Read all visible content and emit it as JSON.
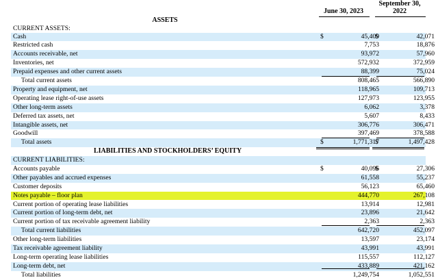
{
  "header": {
    "col1": "June 30, 2023",
    "col2_line1": "September 30,",
    "col2_line2": "2022"
  },
  "sections": {
    "assets_title": "ASSETS",
    "liabilities_title": "LIABILITIES AND STOCKHOLDERS’ EQUITY"
  },
  "rows": [
    {
      "label": "CURRENT ASSETS:",
      "indent": false,
      "shaded": false,
      "c1": "",
      "c2": "",
      "cur1": "",
      "cur2": ""
    },
    {
      "label": "Cash",
      "indent": false,
      "shaded": true,
      "c1": "45,409",
      "c2": "42,071",
      "cur1": "$",
      "cur2": "$"
    },
    {
      "label": "Restricted cash",
      "indent": false,
      "shaded": false,
      "c1": "7,753",
      "c2": "18,876",
      "cur1": "",
      "cur2": ""
    },
    {
      "label": "Accounts receivable, net",
      "indent": false,
      "shaded": true,
      "c1": "93,972",
      "c2": "57,960",
      "cur1": "",
      "cur2": ""
    },
    {
      "label": "Inventories, net",
      "indent": false,
      "shaded": false,
      "c1": "572,932",
      "c2": "372,959",
      "cur1": "",
      "cur2": ""
    },
    {
      "label": "Prepaid expenses and other current assets",
      "indent": false,
      "shaded": true,
      "c1": "88,399",
      "c2": "75,024",
      "cur1": "",
      "cur2": ""
    },
    {
      "label": "Total current assets",
      "indent": true,
      "shaded": false,
      "c1": "808,465",
      "c2": "566,890",
      "cur1": "",
      "cur2": ""
    },
    {
      "label": "Property and equipment, net",
      "indent": false,
      "shaded": true,
      "c1": "118,965",
      "c2": "109,713",
      "cur1": "",
      "cur2": ""
    },
    {
      "label": "Operating lease right-of-use assets",
      "indent": false,
      "shaded": false,
      "c1": "127,973",
      "c2": "123,955",
      "cur1": "",
      "cur2": ""
    },
    {
      "label": "Other long-term assets",
      "indent": false,
      "shaded": true,
      "c1": "6,062",
      "c2": "3,378",
      "cur1": "",
      "cur2": ""
    },
    {
      "label": "Deferred tax assets, net",
      "indent": false,
      "shaded": false,
      "c1": "5,607",
      "c2": "8,433",
      "cur1": "",
      "cur2": ""
    },
    {
      "label": "Intangible assets, net",
      "indent": false,
      "shaded": true,
      "c1": "306,776",
      "c2": "306,471",
      "cur1": "",
      "cur2": ""
    },
    {
      "label": "Goodwill",
      "indent": false,
      "shaded": false,
      "c1": "397,469",
      "c2": "378,588",
      "cur1": "",
      "cur2": ""
    },
    {
      "label": "Total assets",
      "indent": true,
      "shaded": true,
      "c1": "1,771,317",
      "c2": "1,497,428",
      "cur1": "$",
      "cur2": "$"
    },
    {
      "label": "CURRENT LIABILITIES:",
      "indent": false,
      "shaded": true,
      "c1": "",
      "c2": "",
      "cur1": "",
      "cur2": ""
    },
    {
      "label": "Accounts payable",
      "indent": false,
      "shaded": false,
      "c1": "40,096",
      "c2": "27,306",
      "cur1": "$",
      "cur2": "$"
    },
    {
      "label": "Other payables and accrued expenses",
      "indent": false,
      "shaded": true,
      "c1": "61,558",
      "c2": "55,237",
      "cur1": "",
      "cur2": ""
    },
    {
      "label": "Customer deposits",
      "indent": false,
      "shaded": false,
      "c1": "56,123",
      "c2": "65,460",
      "cur1": "",
      "cur2": ""
    },
    {
      "label": "Notes payable – floor plan",
      "indent": false,
      "shaded": false,
      "highlight": true,
      "c1": "444,770",
      "c2": "267,108",
      "cur1": "",
      "cur2": ""
    },
    {
      "label": "Current portion of operating lease liabilities",
      "indent": false,
      "shaded": false,
      "c1": "13,914",
      "c2": "12,981",
      "cur1": "",
      "cur2": ""
    },
    {
      "label": "Current portion of long-term debt, net",
      "indent": false,
      "shaded": true,
      "c1": "23,896",
      "c2": "21,642",
      "cur1": "",
      "cur2": ""
    },
    {
      "label": "Current portion of tax receivable agreement liability",
      "indent": false,
      "shaded": false,
      "c1": "2,363",
      "c2": "2,363",
      "cur1": "",
      "cur2": ""
    },
    {
      "label": "Total current liabilities",
      "indent": true,
      "shaded": true,
      "c1": "642,720",
      "c2": "452,097",
      "cur1": "",
      "cur2": ""
    },
    {
      "label": "Other long-term liabilities",
      "indent": false,
      "shaded": false,
      "c1": "13,597",
      "c2": "23,174",
      "cur1": "",
      "cur2": ""
    },
    {
      "label": "Tax receivable agreement liability",
      "indent": false,
      "shaded": true,
      "c1": "43,991",
      "c2": "43,991",
      "cur1": "",
      "cur2": ""
    },
    {
      "label": "Long-term operating lease liabilities",
      "indent": false,
      "shaded": false,
      "c1": "115,557",
      "c2": "112,127",
      "cur1": "",
      "cur2": ""
    },
    {
      "label": "Long-term debt, net",
      "indent": false,
      "shaded": true,
      "c1": "433,889",
      "c2": "421,162",
      "cur1": "",
      "cur2": ""
    },
    {
      "label": "Total liabilities",
      "indent": true,
      "shaded": false,
      "c1": "1,249,754",
      "c2": "1,052,551",
      "cur1": "",
      "cur2": ""
    }
  ],
  "colors": {
    "shade": "#d6ecfa",
    "highlight": "#e4f22c"
  }
}
